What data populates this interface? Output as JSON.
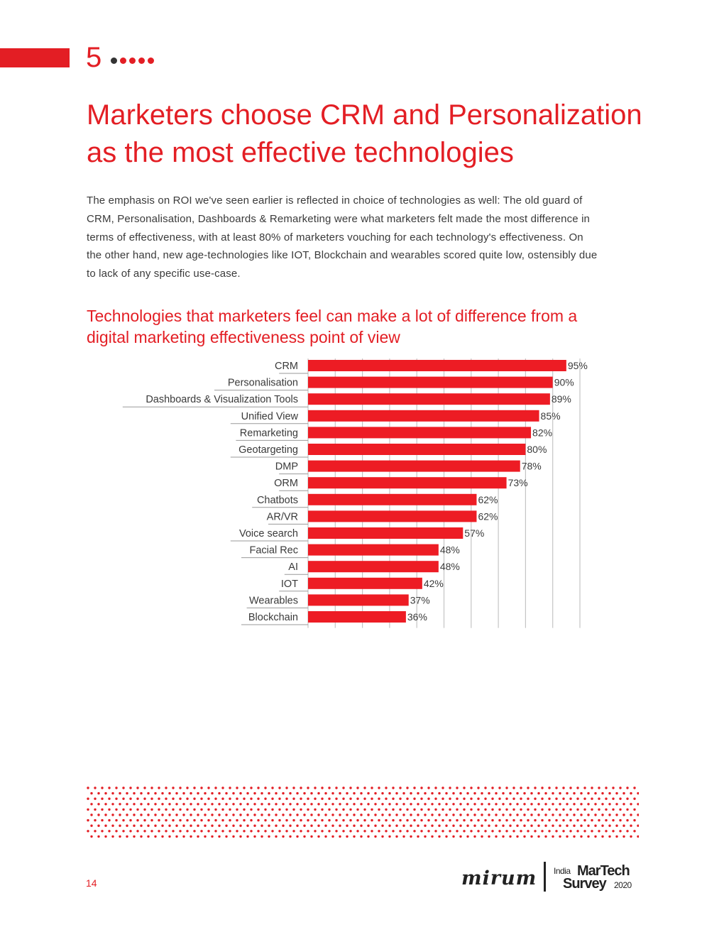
{
  "header": {
    "section_number": "5",
    "title_lines": [
      "Marketers choose CRM and Personalization",
      "as the most effective technologies"
    ],
    "accent_color": "#e31e24",
    "dot_colors": [
      "#333333",
      "#e31e24",
      "#e31e24",
      "#e31e24",
      "#e31e24"
    ]
  },
  "intro": {
    "lines": [
      "The emphasis on ROI we've seen earlier is reflected in choice of technologies as well: The old guard of",
      "CRM, Personalisation, Dashboards & Remarketing were what marketers felt made the most difference in",
      "terms of effectiveness, with at least 80% of marketers vouching for each technology's effectiveness. On",
      "the other hand, new age-technologies like IOT, Blockchain and wearables scored quite low, ostensibly due",
      "to lack of any specific use-case."
    ]
  },
  "chart_data": {
    "type": "bar",
    "orientation": "horizontal",
    "title_lines": [
      "Technologies that marketers feel can make a lot of difference from a",
      "digital marketing effectiveness point of view"
    ],
    "categories": [
      "CRM",
      "Personalisation",
      "Dashboards & Visualization Tools",
      "Unified View",
      "Remarketing",
      "Geotargeting",
      "DMP",
      "ORM",
      "Chatbots",
      "AR/VR",
      "Voice search",
      "Facial Rec",
      "AI",
      "IOT",
      "Wearables",
      "Blockchain"
    ],
    "values": [
      95,
      90,
      89,
      85,
      82,
      80,
      78,
      73,
      62,
      62,
      57,
      48,
      48,
      42,
      37,
      36
    ],
    "value_labels": [
      "95%",
      "90%",
      "89%",
      "85%",
      "82%",
      "80%",
      "78%",
      "73%",
      "62%",
      "62%",
      "57%",
      "48%",
      "48%",
      "42%",
      "37%",
      "36%"
    ],
    "xlim": [
      0,
      100
    ],
    "grid_step": 10,
    "grid": true,
    "bar_color": "#ed1c24",
    "xlabel": "",
    "ylabel": ""
  },
  "footer": {
    "page_number": "14",
    "logo_mirum": "mirum",
    "logo_india": "India",
    "logo_martech": "MarTech",
    "logo_survey": "Survey",
    "logo_year": "2020",
    "pattern_color": "#e31e24"
  }
}
